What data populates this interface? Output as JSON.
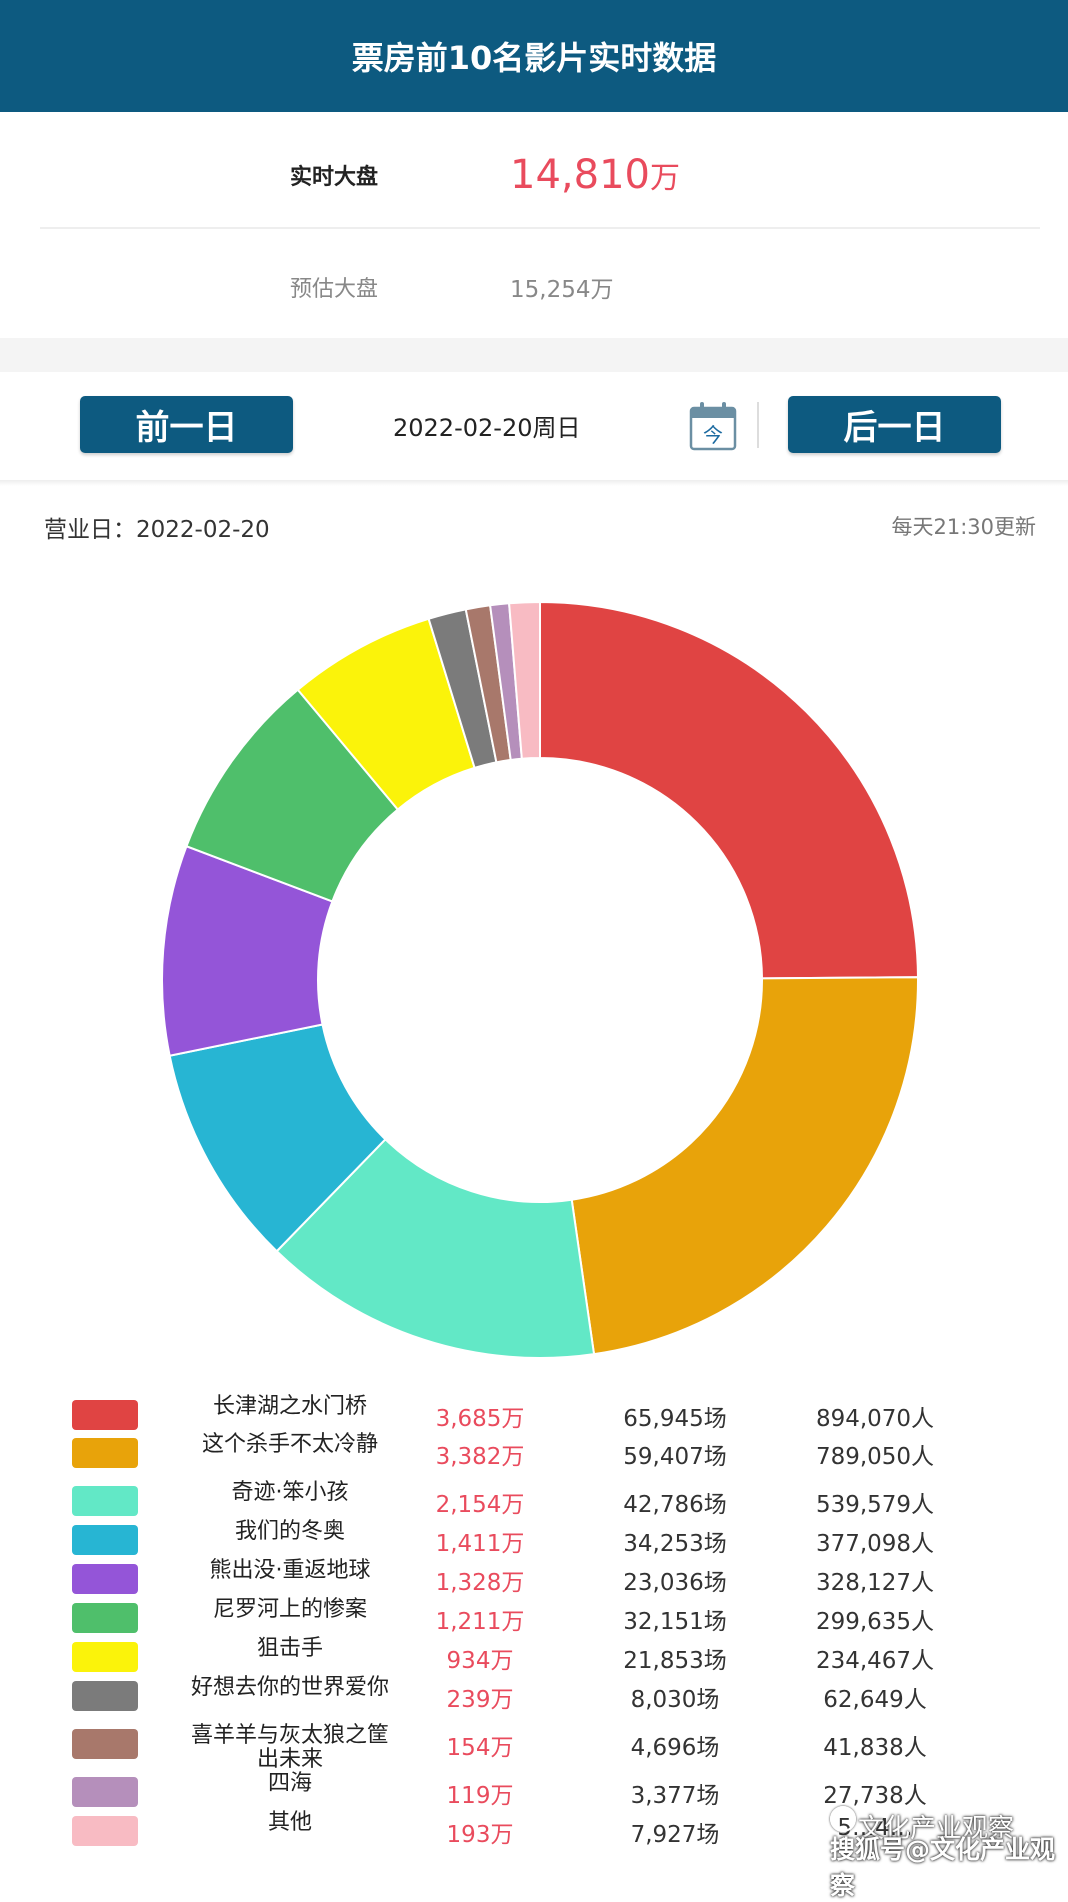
{
  "header": {
    "title": "票房前10名影片实时数据"
  },
  "stats": {
    "realtime_label": "实时大盘",
    "realtime_value": "14,810",
    "realtime_unit": "万",
    "estimate_label": "预估大盘",
    "estimate_value": "15,254万"
  },
  "nav": {
    "prev_label": "前一日",
    "date": "2022-02-20周日",
    "calendar_glyph": "今",
    "next_label": "后一日"
  },
  "info": {
    "business_day": "营业日：2022-02-20",
    "update_note": "每天21:30更新"
  },
  "chart_data": {
    "type": "pie",
    "donut": true,
    "unit": "万",
    "categories": [
      "长津湖之水门桥",
      "这个杀手不太冷静",
      "奇迹·笨小孩",
      "我们的冬奥",
      "熊出没·重返地球",
      "尼罗河上的惨案",
      "狙击手",
      "好想去你的世界爱你",
      "喜羊羊与灰太狼之筐出未来",
      "四海",
      "其他"
    ],
    "values": [
      3685,
      3382,
      2154,
      1411,
      1328,
      1211,
      934,
      239,
      154,
      119,
      193
    ],
    "colors": [
      "#e04443",
      "#e8a30a",
      "#62e8c6",
      "#27b5d3",
      "#9455d8",
      "#4fbf6b",
      "#fbf30a",
      "#7b7b7b",
      "#a8786b",
      "#b58fbb",
      "#f8bbc3"
    ]
  },
  "legend": {
    "rows": [
      {
        "name": "长津湖之水门桥",
        "box": "3,685万",
        "shows": "65,945场",
        "people": "894,070人"
      },
      {
        "name": "这个杀手不太冷静",
        "box": "3,382万",
        "shows": "59,407场",
        "people": "789,050人"
      },
      {
        "name": "奇迹·笨小孩",
        "box": "2,154万",
        "shows": "42,786场",
        "people": "539,579人"
      },
      {
        "name": "我们的冬奥",
        "box": "1,411万",
        "shows": "34,253场",
        "people": "377,098人"
      },
      {
        "name": "熊出没·重返地球",
        "box": "1,328万",
        "shows": "23,036场",
        "people": "328,127人"
      },
      {
        "name": "尼罗河上的惨案",
        "box": "1,211万",
        "shows": "32,151场",
        "people": "299,635人"
      },
      {
        "name": "狙击手",
        "box": "934万",
        "shows": "21,853场",
        "people": "234,467人"
      },
      {
        "name": "好想去你的世界爱你",
        "box": "239万",
        "shows": "8,030场",
        "people": "62,649人"
      },
      {
        "name": "喜羊羊与灰太狼之筐出未来",
        "box": "154万",
        "shows": "4,696场",
        "people": "41,838人"
      },
      {
        "name": "四海",
        "box": "119万",
        "shows": "3,377场",
        "people": "27,738人"
      },
      {
        "name": "其他",
        "box": "193万",
        "shows": "7,927场",
        "people": "5…4…"
      }
    ]
  },
  "watermark": {
    "line1": "文化产业观察",
    "line2": "搜狐号@文化产业观察"
  }
}
